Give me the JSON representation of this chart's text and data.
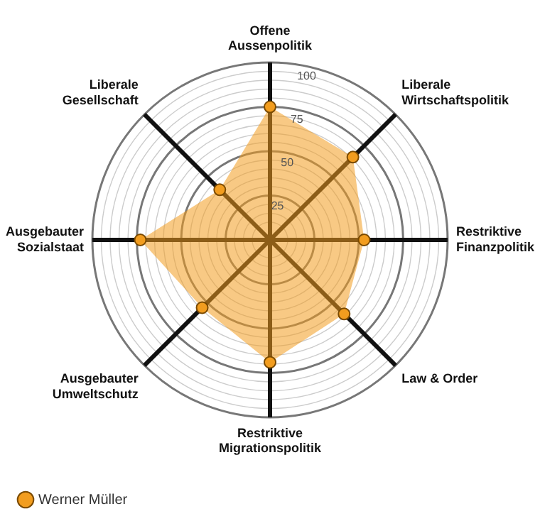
{
  "chart_data": {
    "type": "radar",
    "categories": [
      "Offene\nAussenpolitik",
      "Liberale\nWirtschaftspolitik",
      "Restriktive\nFinanzpolitik",
      "Law & Order",
      "Restriktive\nMigrationspolitik",
      "Ausgebauter\nUmweltschutz",
      "Ausgebauter\nSozialstaat",
      "Liberale\nGesellschaft"
    ],
    "series": [
      {
        "name": "Werner Müller",
        "color": "#f29d1f",
        "values": [
          75,
          66,
          53,
          59,
          69,
          54,
          73,
          40
        ]
      }
    ],
    "ylim": [
      0,
      100
    ],
    "yticks": [
      25,
      50,
      75,
      100
    ],
    "grid": true,
    "legend": "bottom left",
    "marker": "circle"
  }
}
